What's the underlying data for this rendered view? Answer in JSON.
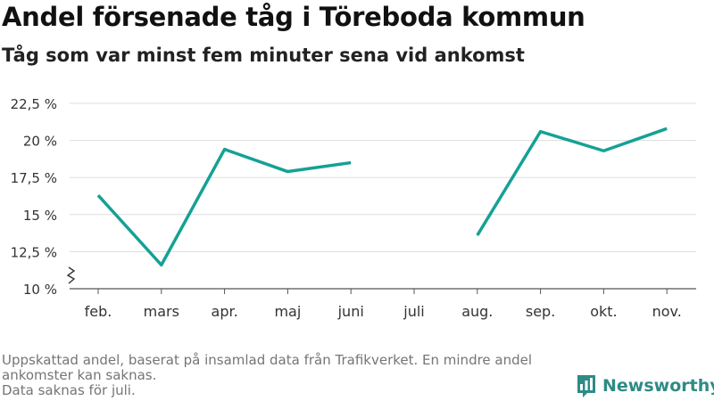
{
  "title": "Andel försenade tåg i Töreboda kommun",
  "subtitle": "Tåg som var minst fem minuter sena vid ankomst",
  "footnote": {
    "line1": "Uppskattad andel, baserat på insamlad data från Trafikverket. En mindre andel ankomster kan saknas.",
    "line2": "Data saknas för juli."
  },
  "brand": {
    "name": "Newsworthy",
    "icon": "bar-chart-logo-icon",
    "color": "#2e8b86"
  },
  "chart_data": {
    "type": "line",
    "categories": [
      "feb.",
      "mars",
      "apr.",
      "maj",
      "juni",
      "juli",
      "aug.",
      "sep.",
      "okt.",
      "nov."
    ],
    "series": [
      {
        "values": [
          16.3,
          11.6,
          19.4,
          17.9,
          18.5,
          null,
          13.6,
          20.6,
          19.3,
          20.8
        ],
        "color": "#15a195"
      }
    ],
    "yticks": [
      10,
      12.5,
      15,
      17.5,
      20,
      22.5
    ],
    "ytick_labels": [
      "10 %",
      "12,5 %",
      "15 %",
      "17,5 %",
      "20 %",
      "22,5 %"
    ],
    "ylim": [
      10,
      22.5
    ],
    "y_axis_break": true,
    "grid": true,
    "xlabel": "",
    "ylabel": ""
  }
}
